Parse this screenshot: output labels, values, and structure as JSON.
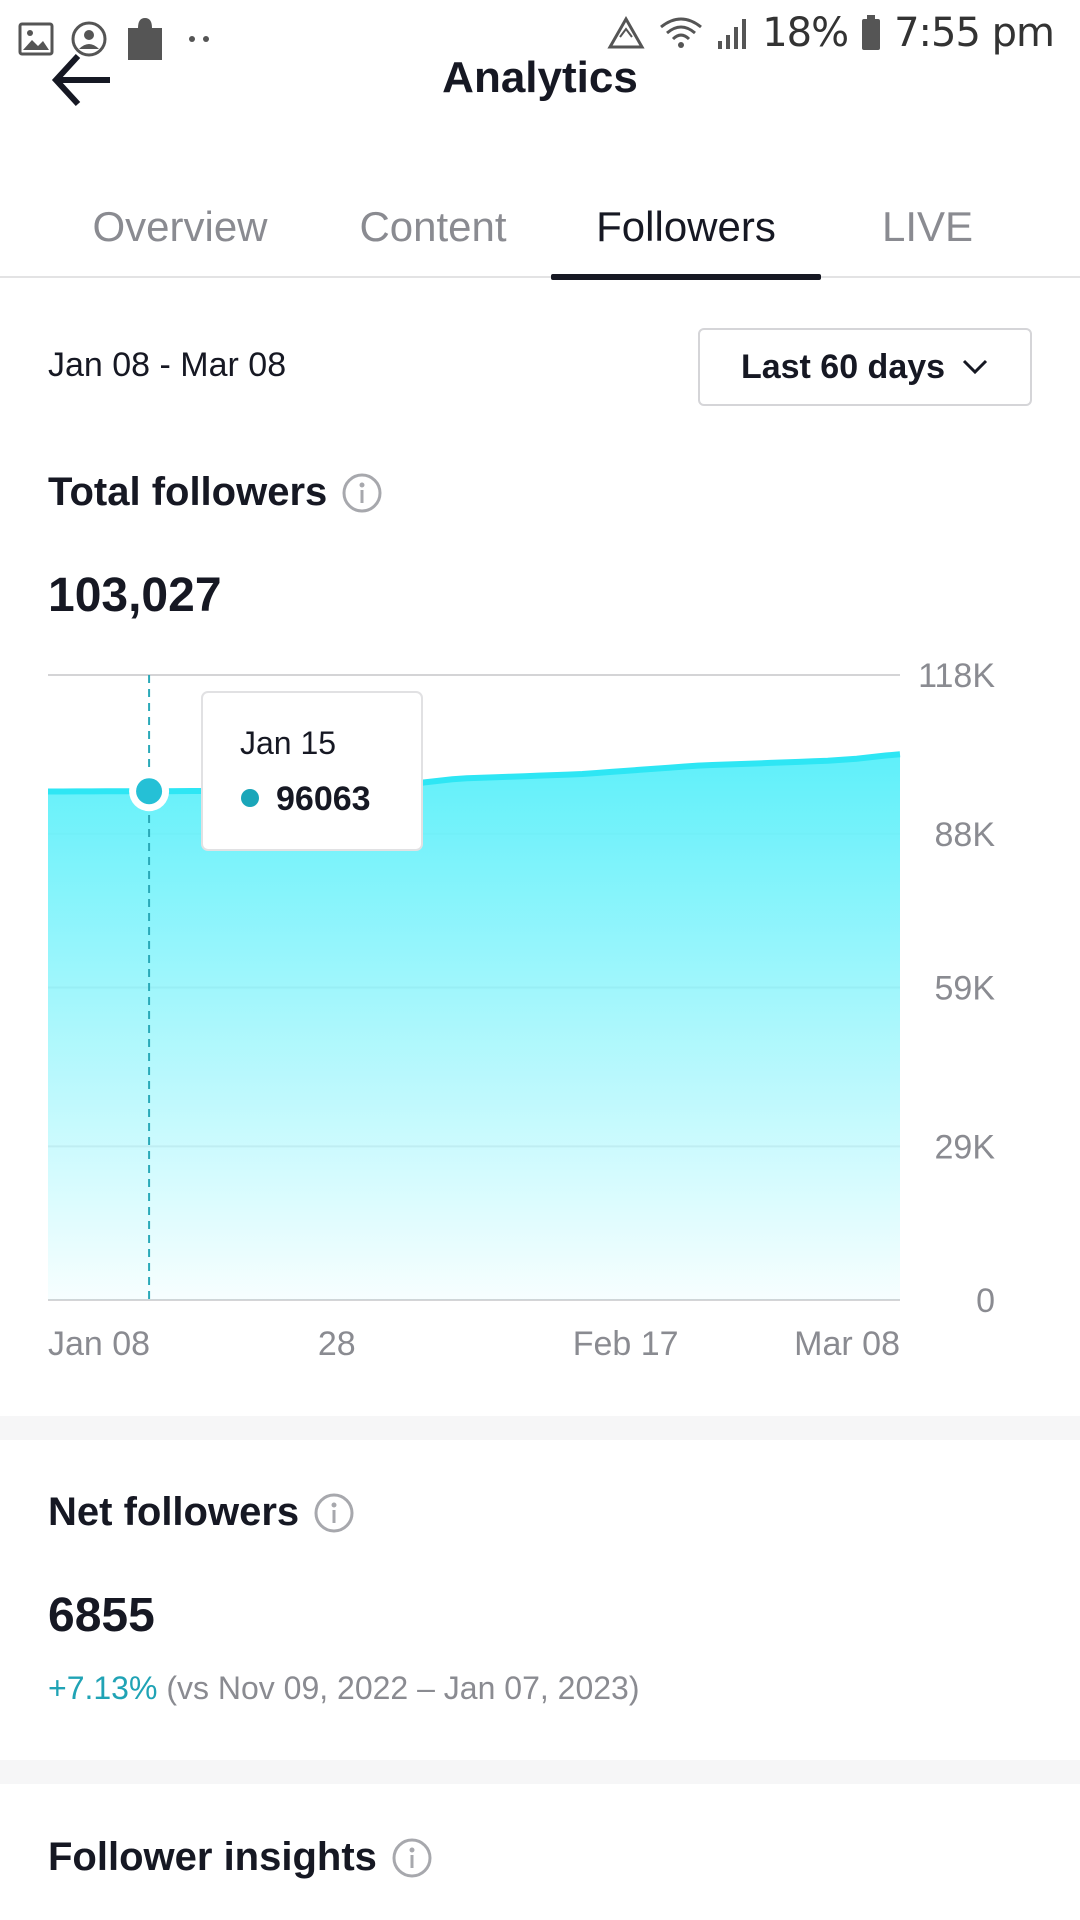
{
  "status_bar": {
    "battery": "18%",
    "time": "7:55 pm",
    "icons": [
      "image-icon",
      "account-circle-icon",
      "puzzle-icon",
      "more-dots-icon",
      "recycle-icon",
      "wifi-icon",
      "signal-icon",
      "battery-icon"
    ]
  },
  "header": {
    "title": "Analytics"
  },
  "tabs": [
    {
      "label": "Overview",
      "active": false
    },
    {
      "label": "Content",
      "active": false
    },
    {
      "label": "Followers",
      "active": true
    },
    {
      "label": "LIVE",
      "active": false
    }
  ],
  "date_range": {
    "label": "Jan 08 - Mar 08",
    "select_value": "Last 60 days"
  },
  "total_followers": {
    "title": "Total followers",
    "value": "103,027"
  },
  "chart_data": {
    "type": "area",
    "x": [
      "Jan 08",
      "Jan 09",
      "Jan 10",
      "Jan 11",
      "Jan 12",
      "Jan 13",
      "Jan 14",
      "Jan 15",
      "Jan 16",
      "Jan 17",
      "Jan 18",
      "Jan 19",
      "Jan 20",
      "Jan 21",
      "Jan 22",
      "Jan 23",
      "Jan 24",
      "Jan 25",
      "Jan 26",
      "Jan 27",
      "Jan 28",
      "Jan 29",
      "Jan 30",
      "Jan 31",
      "Feb 01",
      "Feb 02",
      "Feb 03",
      "Feb 04",
      "Feb 05",
      "Feb 06",
      "Feb 07",
      "Feb 08",
      "Feb 09",
      "Feb 10",
      "Feb 11",
      "Feb 12",
      "Feb 13",
      "Feb 14",
      "Feb 15",
      "Feb 16",
      "Feb 17",
      "Feb 18",
      "Feb 19",
      "Feb 20",
      "Feb 21",
      "Feb 22",
      "Feb 23",
      "Feb 24",
      "Feb 25",
      "Feb 26",
      "Feb 27",
      "Feb 28",
      "Mar 01",
      "Mar 02",
      "Mar 03",
      "Mar 04",
      "Mar 05",
      "Mar 06",
      "Mar 07",
      "Mar 08"
    ],
    "series": [
      {
        "values": [
          96000,
          96010,
          96020,
          96030,
          96040,
          96050,
          96060,
          96063,
          96070,
          96080,
          96090,
          96100,
          96110,
          96120,
          96130,
          96140,
          96150,
          96160,
          96170,
          96180,
          96200,
          96250,
          96300,
          96400,
          96600,
          96900,
          97700,
          98000,
          98300,
          98500,
          98600,
          98700,
          98800,
          98900,
          99000,
          99100,
          99200,
          99300,
          99500,
          99700,
          99900,
          100100,
          100300,
          100500,
          100700,
          100900,
          101000,
          101100,
          101200,
          101300,
          101400,
          101500,
          101600,
          101700,
          101800,
          102000,
          102200,
          102500,
          102800,
          103027
        ]
      }
    ],
    "x_tick_labels": [
      "Jan 08",
      "28",
      "Feb 17",
      "Mar 08"
    ],
    "y_tick_labels": [
      "118K",
      "88K",
      "59K",
      "29K",
      "0"
    ],
    "y_ticks": [
      118000,
      88000,
      59000,
      29000,
      0
    ],
    "ylim": [
      0,
      118000
    ],
    "grid": true,
    "area_color": "#5ff0fa",
    "line_color": "#2ee6f4",
    "tooltip": {
      "label": "Jan 15",
      "value": "96063",
      "index": 7
    }
  },
  "net_followers": {
    "title": "Net followers",
    "value": "6855",
    "change": "+7.13%",
    "comparison": "(vs Nov 09, 2022 – Jan 07, 2023)"
  },
  "follower_insights": {
    "title": "Follower insights"
  }
}
